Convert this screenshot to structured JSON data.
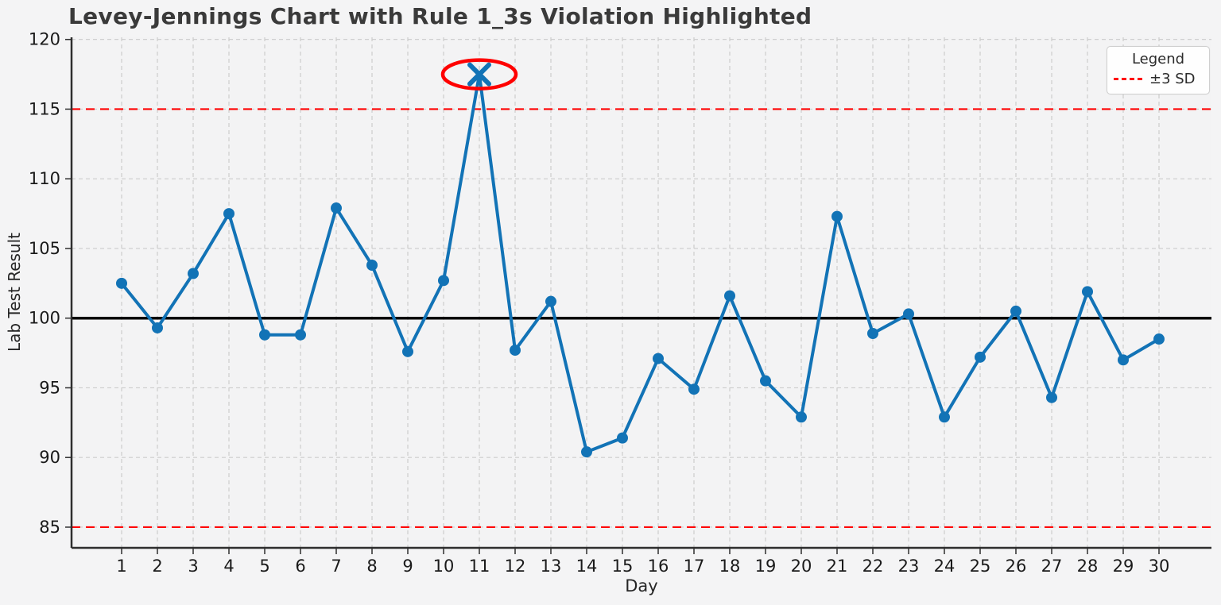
{
  "chart_data": {
    "type": "line",
    "title": "Levey-Jennings Chart with Rule 1_3s Violation Highlighted",
    "xlabel": "Day",
    "ylabel": "Lab Test Result",
    "x": [
      1,
      2,
      3,
      4,
      5,
      6,
      7,
      8,
      9,
      10,
      11,
      12,
      13,
      14,
      15,
      16,
      17,
      18,
      19,
      20,
      21,
      22,
      23,
      24,
      25,
      26,
      27,
      28,
      29,
      30
    ],
    "series": [
      {
        "name": "Lab Test Result",
        "values": [
          102.5,
          99.3,
          103.2,
          107.5,
          98.8,
          98.8,
          107.9,
          103.8,
          97.6,
          102.7,
          117.5,
          97.7,
          101.2,
          90.4,
          91.4,
          97.1,
          94.9,
          101.6,
          95.5,
          92.9,
          107.3,
          98.9,
          100.3,
          92.9,
          97.2,
          100.5,
          94.3,
          101.9,
          97.0,
          98.5
        ]
      }
    ],
    "mean": 100,
    "upper_3sd": 115,
    "lower_3sd": 85,
    "violation": {
      "day": 11,
      "value": 117.5,
      "rule": "1_3s"
    },
    "yticks": [
      85,
      90,
      95,
      100,
      105,
      110,
      115,
      120
    ],
    "ylim": [
      83.5,
      120.2
    ],
    "xlim": [
      -0.45,
      31.45
    ],
    "grid": true,
    "legend_position": "upper right"
  },
  "legend": {
    "title": "Legend",
    "entries": [
      {
        "label": "±3 SD",
        "style": "dashed",
        "color": "#ff0000"
      }
    ]
  },
  "colors": {
    "line": "#1273b6",
    "mean_line": "#000000",
    "sd_line": "#ff0000",
    "highlight_ellipse": "#ff0000",
    "background": "#f4f4f5",
    "plot_background": "#f3f3f4",
    "grid": "#cccccc",
    "spine": "#2e2e2e",
    "tick_text": "#1a1a1a"
  }
}
